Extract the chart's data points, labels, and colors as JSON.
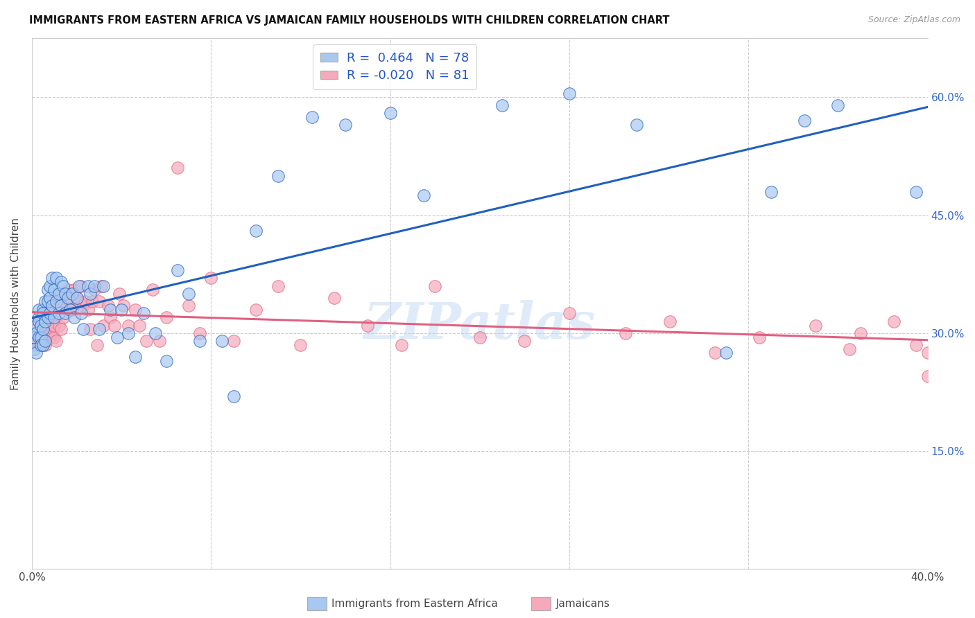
{
  "title": "IMMIGRANTS FROM EASTERN AFRICA VS JAMAICAN FAMILY HOUSEHOLDS WITH CHILDREN CORRELATION CHART",
  "source": "Source: ZipAtlas.com",
  "ylabel": "Family Households with Children",
  "xlim": [
    0.0,
    0.4
  ],
  "ylim": [
    0.0,
    0.675
  ],
  "blue_color": "#A8C8F0",
  "pink_color": "#F5AABB",
  "blue_line_color": "#2060C0",
  "pink_line_color": "#E06080",
  "R_blue": 0.464,
  "N_blue": 78,
  "R_pink": -0.02,
  "N_pink": 81,
  "legend_label_blue": "Immigrants from Eastern Africa",
  "legend_label_pink": "Jamaicans",
  "watermark": "ZIPatlas",
  "blue_scatter_x": [
    0.001,
    0.001,
    0.002,
    0.002,
    0.002,
    0.003,
    0.003,
    0.003,
    0.003,
    0.004,
    0.004,
    0.004,
    0.005,
    0.005,
    0.005,
    0.005,
    0.006,
    0.006,
    0.006,
    0.007,
    0.007,
    0.007,
    0.008,
    0.008,
    0.008,
    0.009,
    0.009,
    0.01,
    0.01,
    0.011,
    0.011,
    0.012,
    0.012,
    0.013,
    0.013,
    0.014,
    0.015,
    0.015,
    0.016,
    0.017,
    0.018,
    0.019,
    0.02,
    0.021,
    0.022,
    0.023,
    0.025,
    0.026,
    0.028,
    0.03,
    0.032,
    0.035,
    0.038,
    0.04,
    0.043,
    0.046,
    0.05,
    0.055,
    0.06,
    0.065,
    0.07,
    0.075,
    0.085,
    0.09,
    0.1,
    0.11,
    0.125,
    0.14,
    0.16,
    0.175,
    0.21,
    0.24,
    0.27,
    0.31,
    0.33,
    0.345,
    0.36,
    0.395
  ],
  "blue_scatter_y": [
    0.295,
    0.28,
    0.31,
    0.3,
    0.275,
    0.32,
    0.295,
    0.315,
    0.33,
    0.295,
    0.31,
    0.285,
    0.33,
    0.305,
    0.325,
    0.285,
    0.34,
    0.315,
    0.29,
    0.34,
    0.32,
    0.355,
    0.345,
    0.325,
    0.36,
    0.37,
    0.335,
    0.355,
    0.32,
    0.37,
    0.34,
    0.35,
    0.325,
    0.365,
    0.335,
    0.36,
    0.325,
    0.35,
    0.345,
    0.33,
    0.35,
    0.32,
    0.345,
    0.36,
    0.325,
    0.305,
    0.36,
    0.35,
    0.36,
    0.305,
    0.36,
    0.33,
    0.295,
    0.33,
    0.3,
    0.27,
    0.325,
    0.3,
    0.265,
    0.38,
    0.35,
    0.29,
    0.29,
    0.22,
    0.43,
    0.5,
    0.575,
    0.565,
    0.58,
    0.475,
    0.59,
    0.605,
    0.565,
    0.275,
    0.48,
    0.57,
    0.59,
    0.48
  ],
  "pink_scatter_x": [
    0.001,
    0.002,
    0.002,
    0.003,
    0.004,
    0.004,
    0.005,
    0.005,
    0.006,
    0.006,
    0.007,
    0.007,
    0.008,
    0.008,
    0.009,
    0.009,
    0.01,
    0.01,
    0.011,
    0.011,
    0.012,
    0.012,
    0.013,
    0.013,
    0.014,
    0.015,
    0.016,
    0.017,
    0.018,
    0.019,
    0.02,
    0.021,
    0.022,
    0.023,
    0.024,
    0.025,
    0.026,
    0.027,
    0.028,
    0.029,
    0.03,
    0.031,
    0.032,
    0.034,
    0.035,
    0.037,
    0.039,
    0.041,
    0.043,
    0.046,
    0.048,
    0.051,
    0.054,
    0.057,
    0.06,
    0.065,
    0.07,
    0.075,
    0.08,
    0.09,
    0.1,
    0.11,
    0.12,
    0.135,
    0.15,
    0.165,
    0.18,
    0.2,
    0.22,
    0.24,
    0.265,
    0.285,
    0.305,
    0.325,
    0.35,
    0.365,
    0.37,
    0.385,
    0.395,
    0.4,
    0.4
  ],
  "pink_scatter_y": [
    0.285,
    0.305,
    0.29,
    0.315,
    0.295,
    0.32,
    0.285,
    0.31,
    0.3,
    0.285,
    0.31,
    0.33,
    0.295,
    0.335,
    0.3,
    0.33,
    0.295,
    0.31,
    0.33,
    0.29,
    0.31,
    0.335,
    0.305,
    0.35,
    0.32,
    0.34,
    0.355,
    0.34,
    0.33,
    0.355,
    0.345,
    0.34,
    0.36,
    0.335,
    0.34,
    0.33,
    0.305,
    0.34,
    0.355,
    0.285,
    0.34,
    0.36,
    0.31,
    0.335,
    0.32,
    0.31,
    0.35,
    0.335,
    0.31,
    0.33,
    0.31,
    0.29,
    0.355,
    0.29,
    0.32,
    0.51,
    0.335,
    0.3,
    0.37,
    0.29,
    0.33,
    0.36,
    0.285,
    0.345,
    0.31,
    0.285,
    0.36,
    0.295,
    0.29,
    0.325,
    0.3,
    0.315,
    0.275,
    0.295,
    0.31,
    0.28,
    0.3,
    0.315,
    0.285,
    0.275,
    0.245
  ]
}
